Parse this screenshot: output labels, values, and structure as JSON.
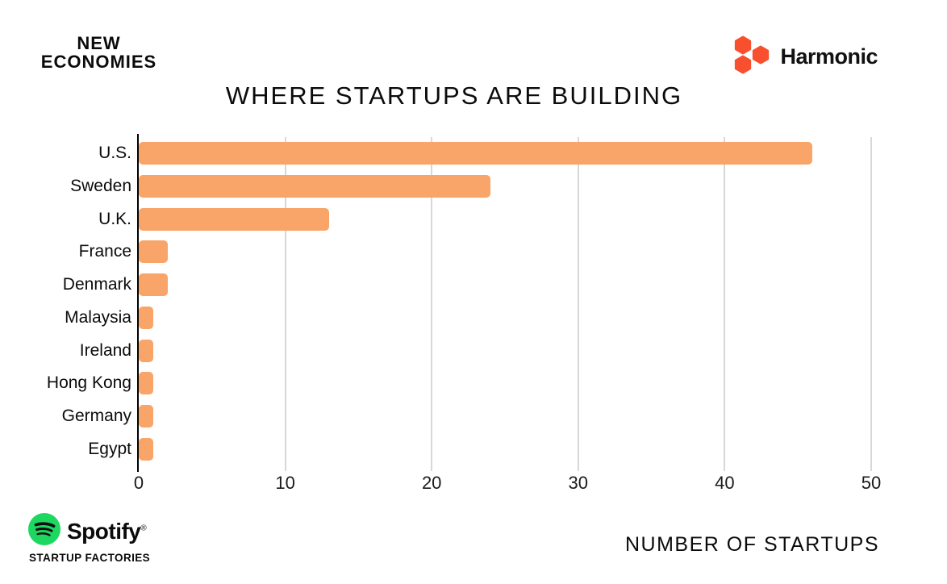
{
  "header": {
    "brand_left_line1": "NEW",
    "brand_left_line2": "ECONOMIES",
    "brand_right_name": "Harmonic",
    "brand_right_icon_color": "#F8502F"
  },
  "title": "WHERE STARTUPS ARE BUILDING",
  "chart_data": {
    "type": "bar",
    "orientation": "horizontal",
    "title": "WHERE STARTUPS ARE BUILDING",
    "xlabel": "NUMBER OF STARTUPS",
    "ylabel": "",
    "categories": [
      "U.S.",
      "Sweden",
      "U.K.",
      "France",
      "Denmark",
      "Malaysia",
      "Ireland",
      "Hong Kong",
      "Germany",
      "Egypt"
    ],
    "values": [
      46,
      24,
      13,
      2,
      2,
      1,
      1,
      1,
      1,
      1
    ],
    "xlim": [
      0,
      50
    ],
    "xticks": [
      0,
      10,
      20,
      30,
      40,
      50
    ],
    "bar_color": "#F9A468",
    "grid": "vertical",
    "gridline_color": "#d8d8d8",
    "legend": "none"
  },
  "footer": {
    "spotify_name": "Spotify",
    "spotify_registered": "®",
    "spotify_sub": "STARTUP FACTORIES",
    "spotify_green": "#1ED760",
    "axis_label": "NUMBER OF STARTUPS"
  }
}
